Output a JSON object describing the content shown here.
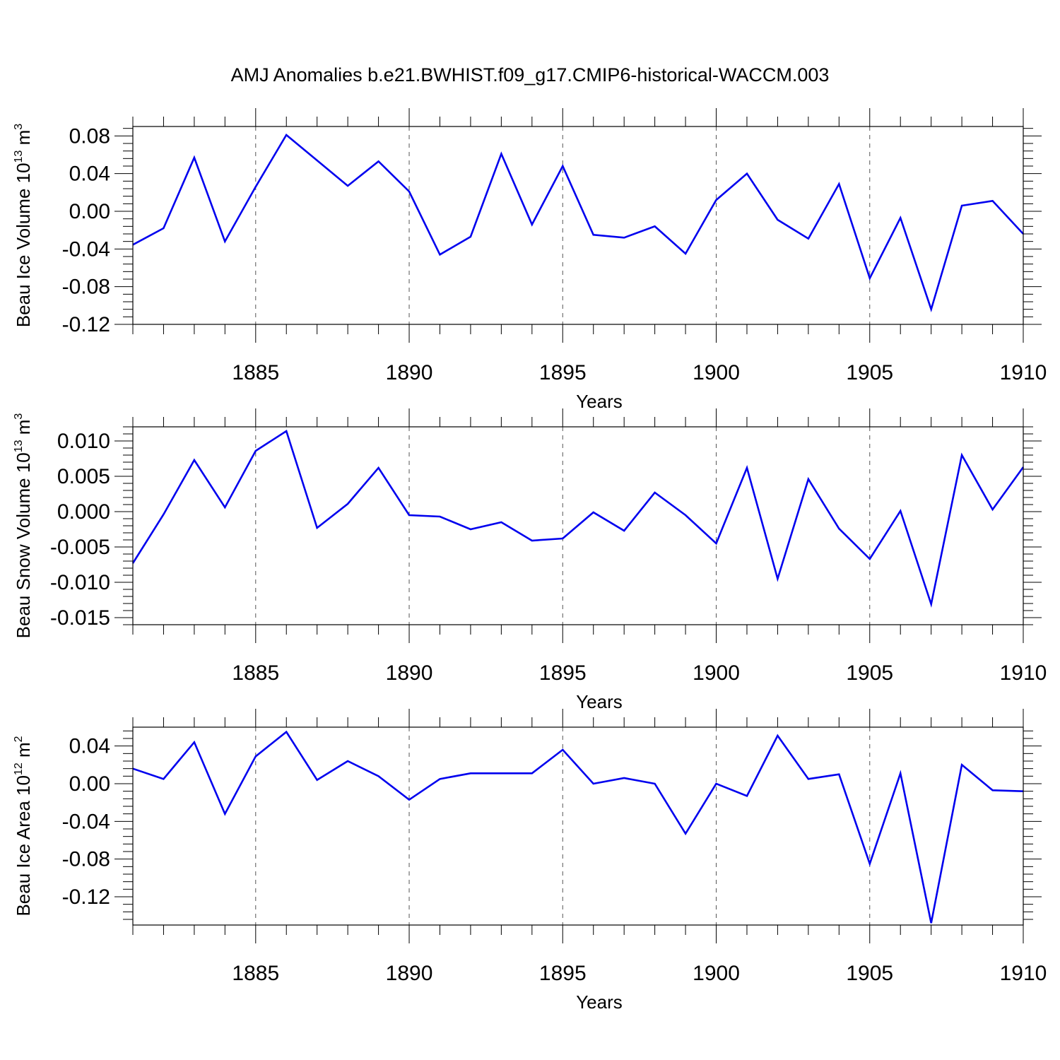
{
  "title": "AMJ Anomalies b.e21.BWHIST.f09_g17.CMIP6-historical-WACCM.003",
  "chart_data": [
    {
      "type": "line",
      "xlabel": "Years",
      "ylabel": {
        "text": "Beau Ice Volume 10",
        "sup1": "13",
        "mid": " m",
        "sup2": "3"
      },
      "xlim": [
        1881,
        1910
      ],
      "ylim": [
        -0.12,
        0.09
      ],
      "xticks": [
        "1885",
        "1890",
        "1895",
        "1900",
        "1905",
        "1910"
      ],
      "yticks": [
        "0.08",
        "0.04",
        "0.00",
        "-0.04",
        "-0.08",
        "-0.12"
      ],
      "ytick_values": [
        0.08,
        0.04,
        0.0,
        -0.04,
        -0.08,
        -0.12
      ],
      "grid": "vertical dashed at major x ticks",
      "line_color": "#0000ee",
      "x": [
        1881,
        1882,
        1883,
        1884,
        1885,
        1886,
        1887,
        1888,
        1889,
        1890,
        1891,
        1892,
        1893,
        1894,
        1895,
        1896,
        1897,
        1898,
        1899,
        1900,
        1901,
        1902,
        1903,
        1904,
        1905,
        1906,
        1907,
        1908,
        1909,
        1910
      ],
      "values": [
        -0.0355,
        -0.018,
        0.057,
        -0.032,
        0.026,
        0.081,
        0.054,
        0.027,
        0.053,
        0.021,
        -0.046,
        -0.027,
        0.061,
        -0.014,
        0.048,
        -0.025,
        -0.028,
        -0.016,
        -0.045,
        0.012,
        0.04,
        -0.009,
        -0.029,
        0.029,
        -0.071,
        -0.007,
        -0.104,
        0.006,
        0.011,
        -0.024
      ]
    },
    {
      "type": "line",
      "xlabel": "Years",
      "ylabel": {
        "text": "Beau Snow Volume 10",
        "sup1": "13",
        "mid": " m",
        "sup2": "3"
      },
      "xlim": [
        1881,
        1910
      ],
      "ylim": [
        -0.016,
        0.012
      ],
      "xticks": [
        "1885",
        "1890",
        "1895",
        "1900",
        "1905",
        "1910"
      ],
      "yticks": [
        "0.010",
        "0.005",
        "0.000",
        "-0.005",
        "-0.010",
        "-0.015"
      ],
      "ytick_values": [
        0.01,
        0.005,
        0.0,
        -0.005,
        -0.01,
        -0.015
      ],
      "grid": "vertical dashed at major x ticks",
      "line_color": "#0000ee",
      "x": [
        1881,
        1882,
        1883,
        1884,
        1885,
        1886,
        1887,
        1888,
        1889,
        1890,
        1891,
        1892,
        1893,
        1894,
        1895,
        1896,
        1897,
        1898,
        1899,
        1900,
        1901,
        1902,
        1903,
        1904,
        1905,
        1906,
        1907,
        1908,
        1909,
        1910
      ],
      "values": [
        -0.0073,
        -0.0004,
        0.0073,
        0.0006,
        0.0086,
        0.0114,
        -0.0023,
        0.0011,
        0.0062,
        -0.0005,
        -0.0007,
        -0.0025,
        -0.0015,
        -0.0041,
        -0.0038,
        -0.0001,
        -0.0027,
        0.0027,
        -0.0005,
        -0.0045,
        0.0062,
        -0.0095,
        0.0046,
        -0.0024,
        -0.0067,
        0.0001,
        -0.0131,
        0.008,
        0.0003,
        0.0063
      ]
    },
    {
      "type": "line",
      "xlabel": "Years",
      "ylabel": {
        "text": "Beau Ice Area 10",
        "sup1": "12",
        "mid": " m",
        "sup2": "2"
      },
      "xlim": [
        1881,
        1910
      ],
      "ylim": [
        -0.15,
        0.06
      ],
      "xticks": [
        "1885",
        "1890",
        "1895",
        "1900",
        "1905",
        "1910"
      ],
      "yticks": [
        "0.04",
        "0.00",
        "-0.04",
        "-0.08",
        "-0.12"
      ],
      "ytick_values": [
        0.04,
        0.0,
        -0.04,
        -0.08,
        -0.12
      ],
      "grid": "vertical dashed at major x ticks",
      "line_color": "#0000ee",
      "x": [
        1881,
        1882,
        1883,
        1884,
        1885,
        1886,
        1887,
        1888,
        1889,
        1890,
        1891,
        1892,
        1893,
        1894,
        1895,
        1896,
        1897,
        1898,
        1899,
        1900,
        1901,
        1902,
        1903,
        1904,
        1905,
        1906,
        1907,
        1908,
        1909,
        1910
      ],
      "values": [
        0.016,
        0.005,
        0.044,
        -0.032,
        0.029,
        0.055,
        0.004,
        0.024,
        0.008,
        -0.017,
        0.005,
        0.011,
        0.011,
        0.011,
        0.036,
        0.0,
        0.006,
        0.0,
        -0.053,
        0.0,
        -0.013,
        0.051,
        0.005,
        0.01,
        -0.085,
        0.011,
        -0.148,
        0.02,
        -0.007,
        -0.008
      ]
    }
  ]
}
